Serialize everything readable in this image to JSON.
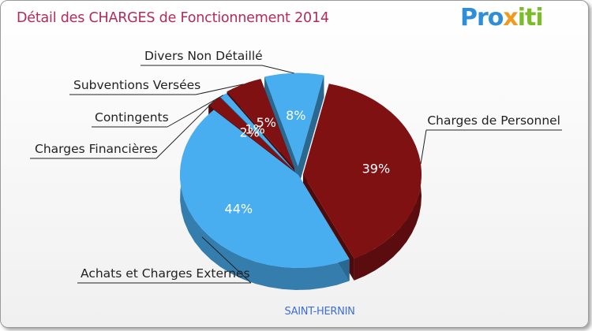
{
  "title": "Détail des CHARGES de Fonctionnement 2014",
  "logo": {
    "part1": "Pro",
    "part2": "x",
    "part3": "iti"
  },
  "colors": {
    "blue": "#48aef0",
    "red": "#7f1113",
    "blue_dark": "#2a7fc0",
    "red_dark": "#5a0b0c"
  },
  "chart_data": {
    "type": "pie",
    "title": "Détail des CHARGES de Fonctionnement 2014",
    "subtitle": "SAINT-HERNIN",
    "series": [
      {
        "name": "Charges de Personnel",
        "value": 39,
        "label": "39%",
        "color": "#7f1113"
      },
      {
        "name": "Achats et Charges Externes",
        "value": 44,
        "label": "44%",
        "color": "#48aef0"
      },
      {
        "name": "Charges Financières",
        "value": 2,
        "label": "2%",
        "color": "#7f1113"
      },
      {
        "name": "Contingents",
        "value": 1,
        "label": "1%",
        "color": "#48aef0"
      },
      {
        "name": "Subventions Versées",
        "value": 5,
        "label": "5%",
        "color": "#7f1113"
      },
      {
        "name": "Divers Non Détaillé",
        "value": 8,
        "label": "8%",
        "color": "#48aef0"
      }
    ]
  }
}
